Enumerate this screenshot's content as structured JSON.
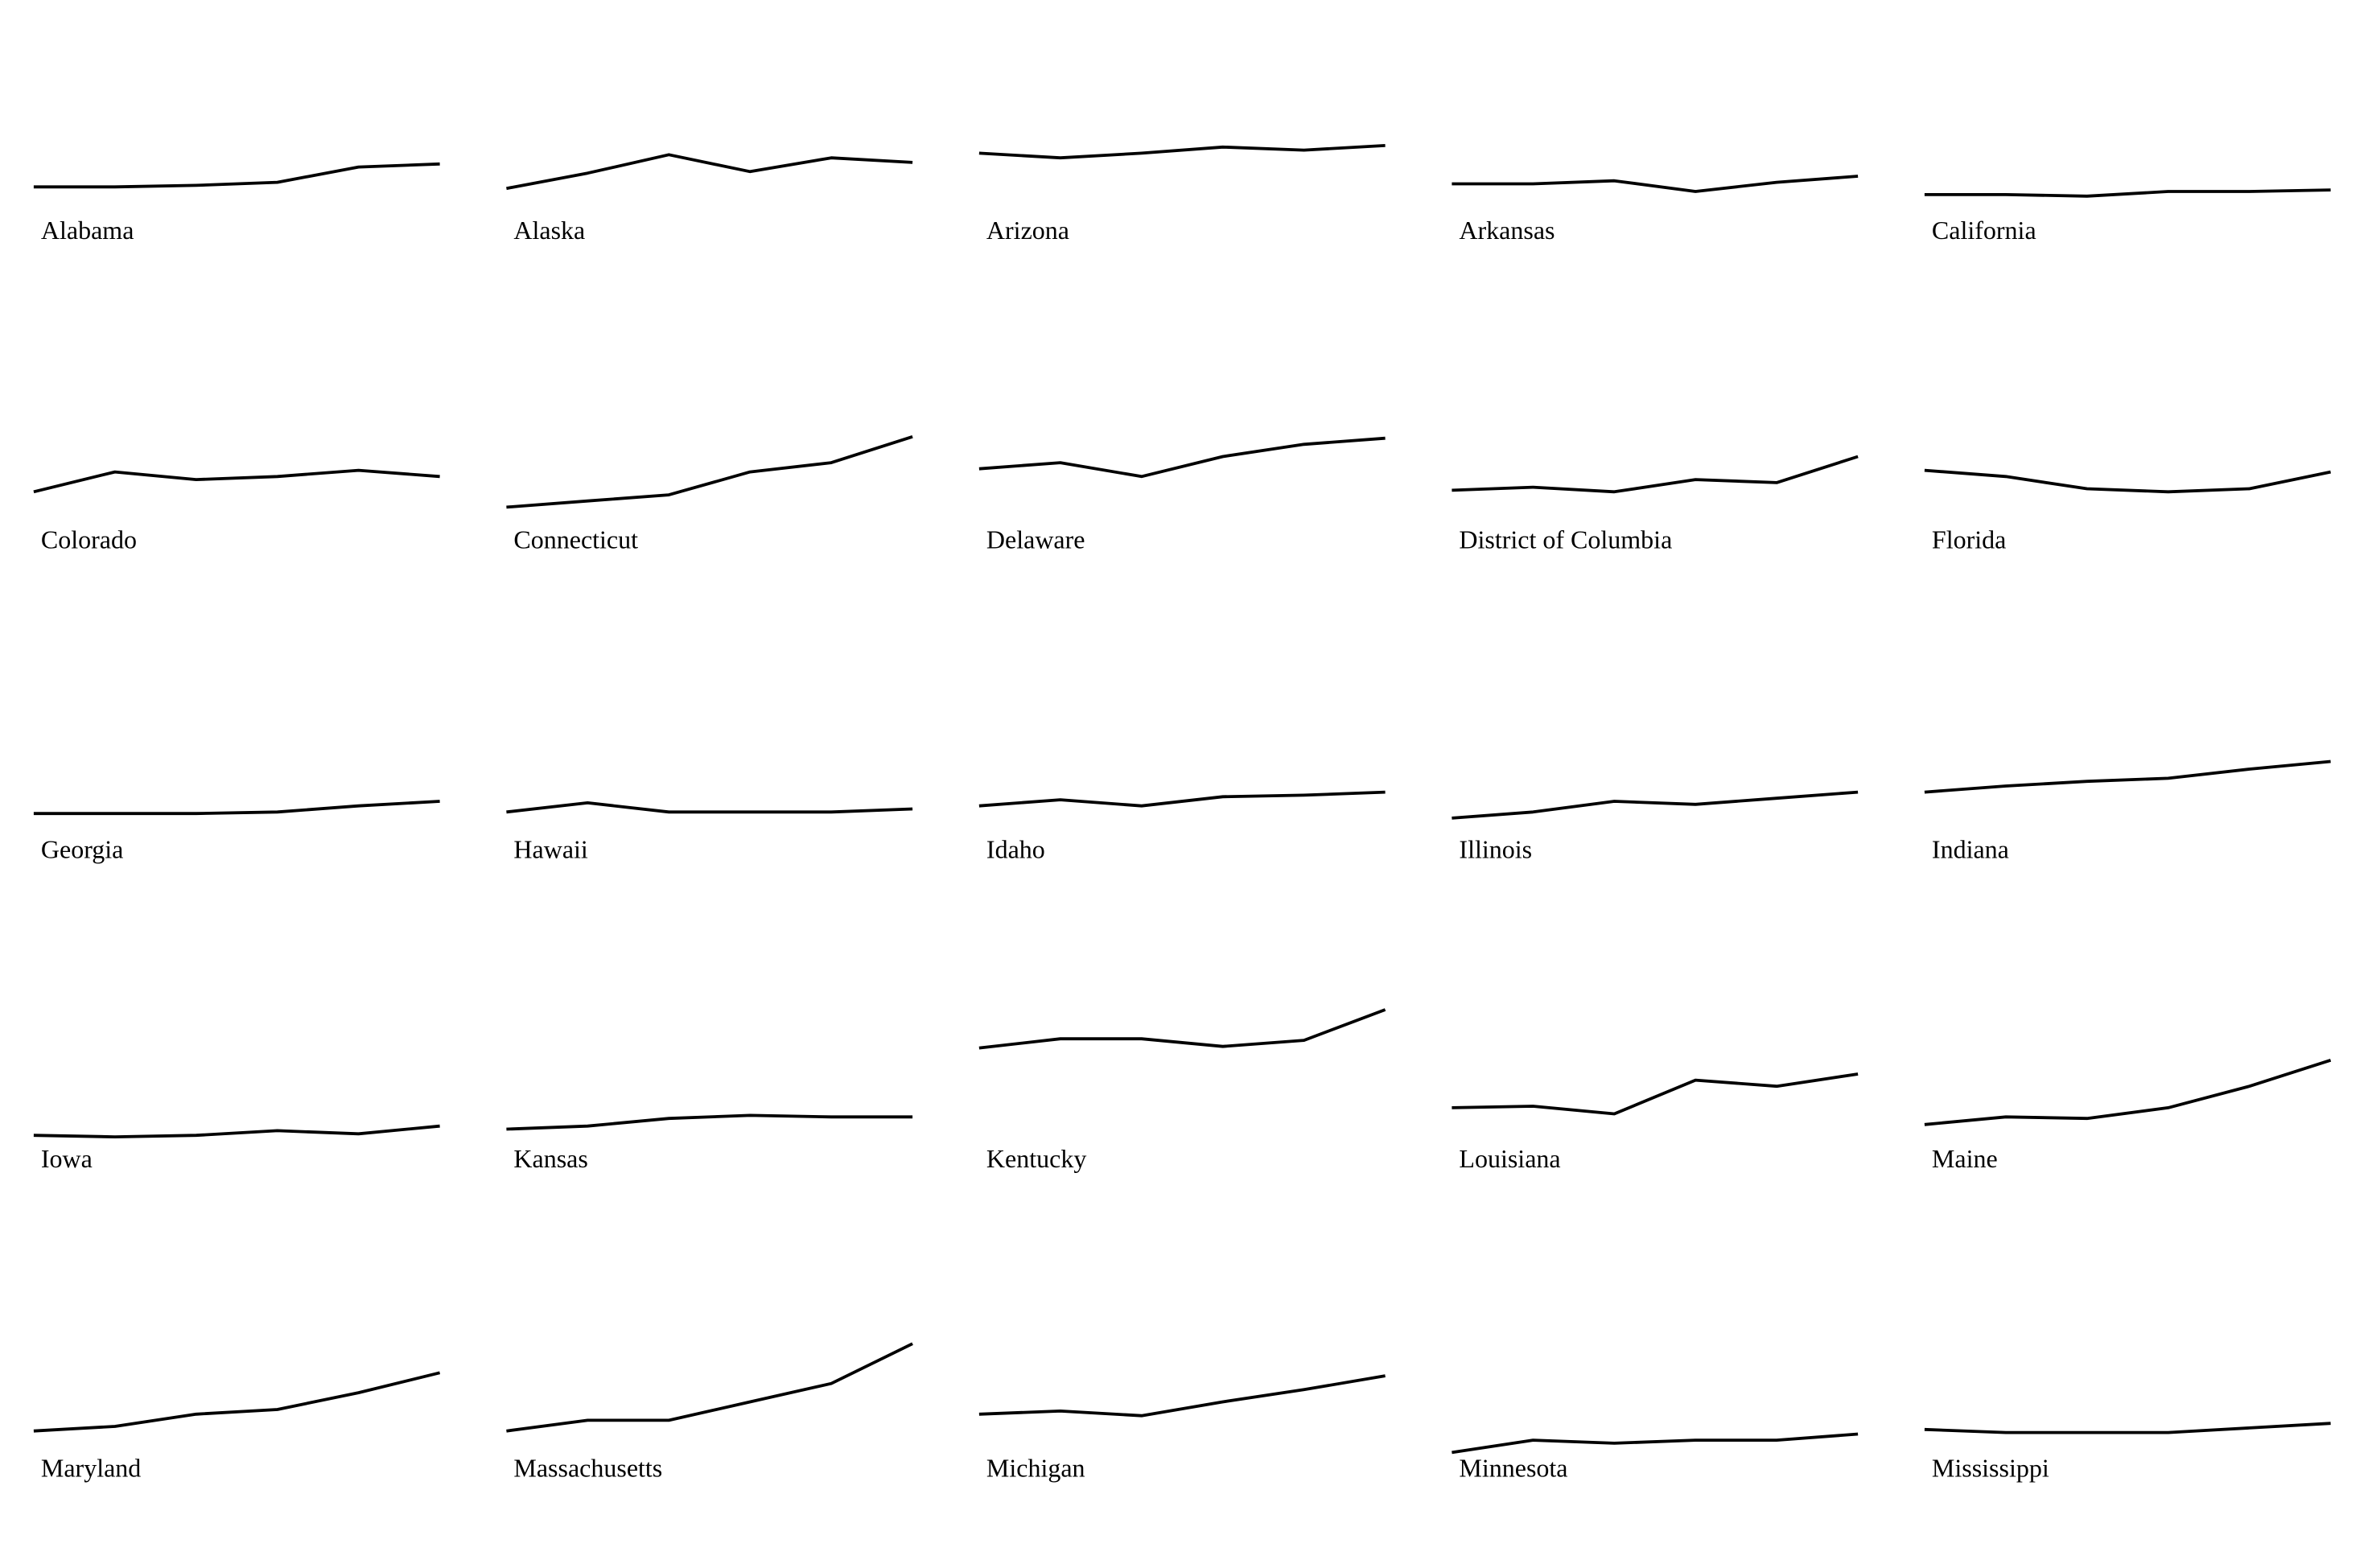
{
  "chart_data": {
    "type": "line",
    "categories": [
      null,
      null,
      null,
      null,
      null,
      null
    ],
    "ylim": [
      0,
      90
    ],
    "color": "#000000",
    "series": [
      {
        "name": "Alabama",
        "values": [
          18,
          18,
          19,
          21,
          31,
          33
        ]
      },
      {
        "name": "Alaska",
        "values": [
          17,
          27,
          39,
          28,
          37,
          34
        ]
      },
      {
        "name": "Arizona",
        "values": [
          40,
          37,
          40,
          44,
          42,
          45
        ]
      },
      {
        "name": "Arkansas",
        "values": [
          20,
          20,
          22,
          15,
          21,
          25
        ]
      },
      {
        "name": "California",
        "values": [
          13,
          13,
          12,
          15,
          15,
          16
        ]
      },
      {
        "name": "Colorado",
        "values": [
          21,
          34,
          29,
          31,
          35,
          31
        ]
      },
      {
        "name": "Connecticut",
        "values": [
          11,
          15,
          19,
          34,
          40,
          57
        ]
      },
      {
        "name": "Delaware",
        "values": [
          36,
          40,
          31,
          44,
          52,
          56
        ]
      },
      {
        "name": "District of Columbia",
        "values": [
          22,
          24,
          21,
          29,
          27,
          44
        ]
      },
      {
        "name": "Florida",
        "values": [
          35,
          31,
          23,
          21,
          23,
          34
        ]
      },
      {
        "name": "Georgia",
        "values": [
          13,
          13,
          13,
          14,
          18,
          21
        ]
      },
      {
        "name": "Hawaii",
        "values": [
          14,
          20,
          14,
          14,
          14,
          16
        ]
      },
      {
        "name": "Idaho",
        "values": [
          18,
          22,
          18,
          24,
          25,
          27
        ]
      },
      {
        "name": "Illinois",
        "values": [
          10,
          14,
          21,
          19,
          23,
          27
        ]
      },
      {
        "name": "Indiana",
        "values": [
          27,
          31,
          34,
          36,
          42,
          47
        ]
      },
      {
        "name": "Iowa",
        "values": [
          5,
          4,
          5,
          8,
          6,
          11
        ]
      },
      {
        "name": "Kansas",
        "values": [
          9,
          11,
          16,
          18,
          17,
          17
        ]
      },
      {
        "name": "Kentucky",
        "values": [
          62,
          68,
          68,
          63,
          67,
          87
        ]
      },
      {
        "name": "Louisiana",
        "values": [
          23,
          24,
          19,
          41,
          37,
          45
        ]
      },
      {
        "name": "Maine",
        "values": [
          12,
          17,
          16,
          23,
          37,
          54
        ]
      },
      {
        "name": "Maryland",
        "values": [
          14,
          17,
          25,
          28,
          39,
          52
        ]
      },
      {
        "name": "Massachusetts",
        "values": [
          14,
          21,
          21,
          33,
          45,
          71
        ]
      },
      {
        "name": "Michigan",
        "values": [
          25,
          27,
          24,
          33,
          41,
          50
        ]
      },
      {
        "name": "Minnesota",
        "values": [
          0,
          8,
          6,
          8,
          8,
          12
        ]
      },
      {
        "name": "Mississippi",
        "values": [
          15,
          13,
          13,
          13,
          16,
          19
        ]
      }
    ]
  }
}
